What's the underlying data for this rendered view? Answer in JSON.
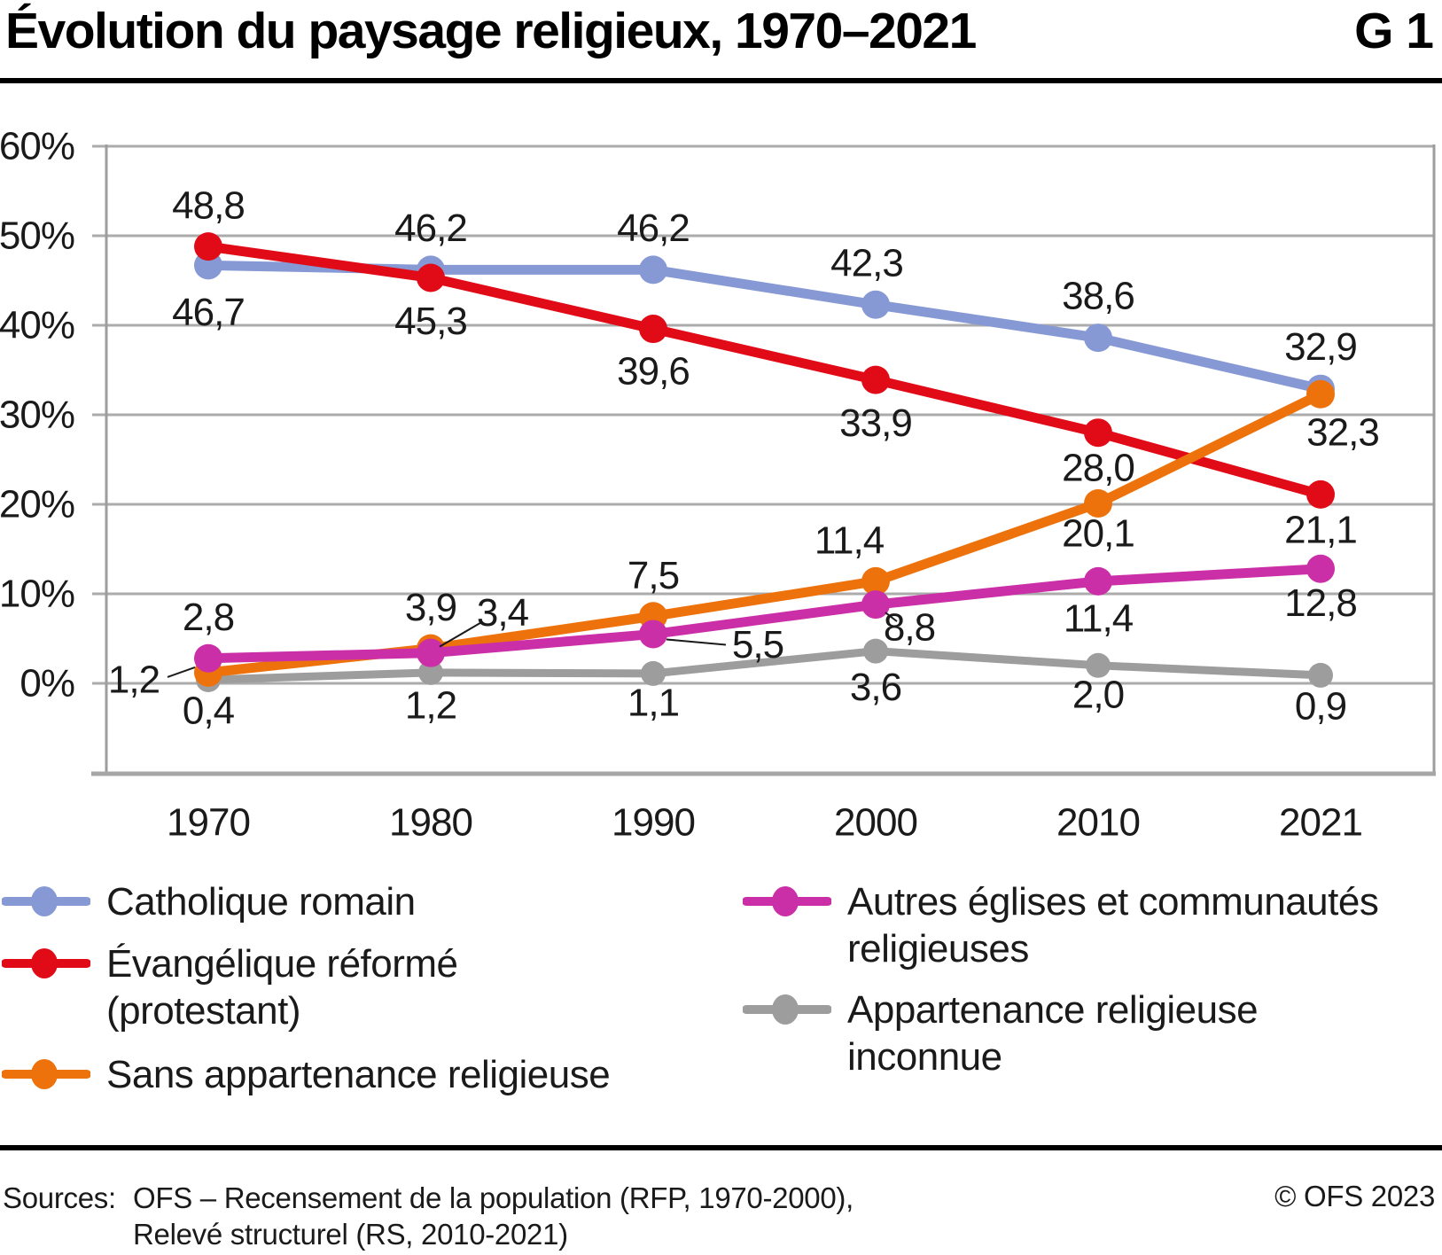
{
  "header": {
    "title": "Évolution du paysage religieux, 1970–2021",
    "graphic_id": "G 1"
  },
  "chart_data": {
    "type": "line",
    "x": [
      1970,
      1980,
      1990,
      2000,
      2010,
      2021
    ],
    "x_labels": [
      "1970",
      "1980",
      "1990",
      "2000",
      "2010",
      "2021"
    ],
    "ylim": [
      0,
      60
    ],
    "y_ticks": [
      "60%",
      "50%",
      "40%",
      "30%",
      "20%",
      "10%",
      "0%"
    ],
    "grid": true,
    "legend_position": "bottom",
    "series": [
      {
        "name": "Catholique romain",
        "color": "#8699d5",
        "values": [
          46.7,
          46.2,
          46.2,
          42.3,
          38.6,
          32.9
        ],
        "labels": [
          "46,7",
          "46,2",
          "46,2",
          "42,3",
          "38,6",
          "32,9"
        ]
      },
      {
        "name": "Évangélique réformé (protestant)",
        "color": "#e10b17",
        "values": [
          48.8,
          45.3,
          39.6,
          33.9,
          28.0,
          21.1
        ],
        "labels": [
          "48,8",
          "45,3",
          "39,6",
          "33,9",
          "28,0",
          "21,1"
        ]
      },
      {
        "name": "Sans appartenance religieuse",
        "color": "#ee720b",
        "values": [
          1.2,
          3.9,
          7.5,
          11.4,
          20.1,
          32.3
        ],
        "labels": [
          "1,2",
          "3,9",
          "7,5",
          "11,4",
          "20,1",
          "32,3"
        ]
      },
      {
        "name": "Autres églises et communautés religieuses",
        "color": "#cb2fa8",
        "values": [
          2.8,
          3.4,
          5.5,
          8.8,
          11.4,
          12.8
        ],
        "labels": [
          "2,8",
          "3,4",
          "5,5",
          "8,8",
          "11,4",
          "12,8"
        ]
      },
      {
        "name": "Appartenance religieuse inconnue",
        "color": "#9d9d9d",
        "values": [
          0.4,
          1.2,
          1.1,
          3.6,
          2.0,
          0.9
        ],
        "labels": [
          "0,4",
          "1,2",
          "1,1",
          "3,6",
          "2,0",
          "0,9"
        ]
      }
    ]
  },
  "legend": {
    "items": [
      {
        "key": "catholique-romain",
        "color": "#8699d5",
        "lines": [
          "Catholique romain"
        ]
      },
      {
        "key": "evangelique-reforme",
        "color": "#e10b17",
        "lines": [
          "Évangélique réformé",
          "(protestant)"
        ]
      },
      {
        "key": "sans-appartenance",
        "color": "#ee720b",
        "lines": [
          "Sans appartenance religieuse"
        ]
      },
      {
        "key": "autres-eglises",
        "color": "#cb2fa8",
        "lines": [
          "Autres églises et communautés",
          "religieuses"
        ]
      },
      {
        "key": "appartenance-inconnue",
        "color": "#9d9d9d",
        "lines": [
          "Appartenance religieuse",
          "inconnue"
        ]
      }
    ]
  },
  "footer": {
    "sources_label": "Sources:",
    "sources_line1": "OFS – Recensement de la population (RFP, 1970-2000),",
    "sources_line2": "Relevé structurel (RS, 2010-2021)",
    "copyright": "© OFS 2023"
  }
}
